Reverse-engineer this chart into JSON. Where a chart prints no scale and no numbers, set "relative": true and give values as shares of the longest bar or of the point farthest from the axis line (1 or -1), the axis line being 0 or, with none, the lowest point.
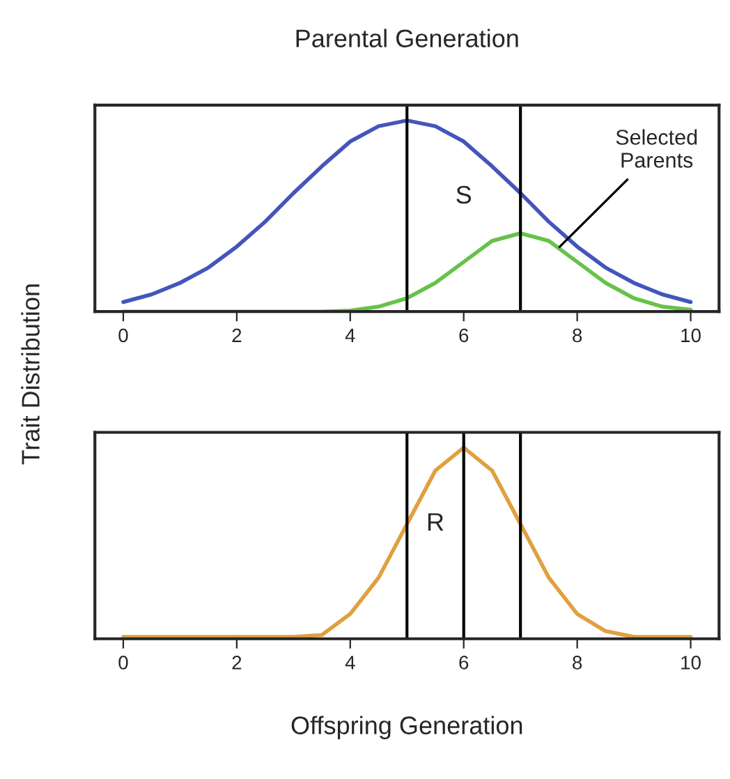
{
  "chart_data": [
    {
      "type": "line",
      "title": "Parental Generation",
      "ylabel": "Trait Distribution",
      "relative": true,
      "x": [
        0,
        0.5,
        1,
        1.5,
        2,
        2.5,
        3,
        3.5,
        4,
        4.5,
        5,
        5.5,
        6,
        6.5,
        7,
        7.5,
        8,
        8.5,
        9,
        9.5,
        10
      ],
      "series": [
        {
          "color": "#4455bb",
          "values": [
            0.05,
            0.09,
            0.15,
            0.23,
            0.34,
            0.47,
            0.62,
            0.76,
            0.89,
            0.97,
            1,
            0.97,
            0.89,
            0.76,
            0.62,
            0.47,
            0.34,
            0.23,
            0.15,
            0.09,
            0.05
          ]
        },
        {
          "color": "#66c24a",
          "values": [
            0,
            0,
            0,
            0,
            0,
            0,
            0,
            0,
            0.005,
            0.026,
            0.07,
            0.15,
            0.26,
            0.37,
            0.41,
            0.37,
            0.26,
            0.15,
            0.07,
            0.026,
            0.01
          ]
        }
      ],
      "xlim": [
        -0.5,
        10.5
      ],
      "xticks": [
        0,
        2,
        4,
        6,
        8,
        10
      ],
      "ref_lines": [
        {
          "axis": "x",
          "value": 5,
          "color": "#000000"
        },
        {
          "axis": "x",
          "value": 7,
          "color": "#000000"
        }
      ],
      "annotations": [
        "S",
        "Selected\nParents"
      ],
      "grid": false
    },
    {
      "type": "line",
      "xlabel": "Offspring Generation",
      "relative": true,
      "x": [
        0,
        0.5,
        1,
        1.5,
        2,
        2.5,
        3,
        3.5,
        4,
        4.5,
        5,
        5.5,
        6,
        6.5,
        7,
        7.5,
        8,
        8.5,
        9,
        9.5,
        10
      ],
      "series": [
        {
          "color": "#e0a040",
          "values": [
            0.01,
            0.01,
            0.01,
            0.01,
            0.01,
            0.01,
            0.01,
            0.02,
            0.13,
            0.32,
            0.6,
            0.88,
            1,
            0.88,
            0.6,
            0.32,
            0.13,
            0.04,
            0.01,
            0.01,
            0.01
          ]
        }
      ],
      "xlim": [
        -0.5,
        10.5
      ],
      "xticks": [
        0,
        2,
        4,
        6,
        8,
        10
      ],
      "ref_lines": [
        {
          "axis": "x",
          "value": 5,
          "color": "#000000"
        },
        {
          "axis": "x",
          "value": 7,
          "color": "#000000"
        },
        {
          "axis": "x",
          "value": 6,
          "color": "#000000"
        }
      ],
      "annotations": [
        "R"
      ],
      "grid": false
    }
  ]
}
